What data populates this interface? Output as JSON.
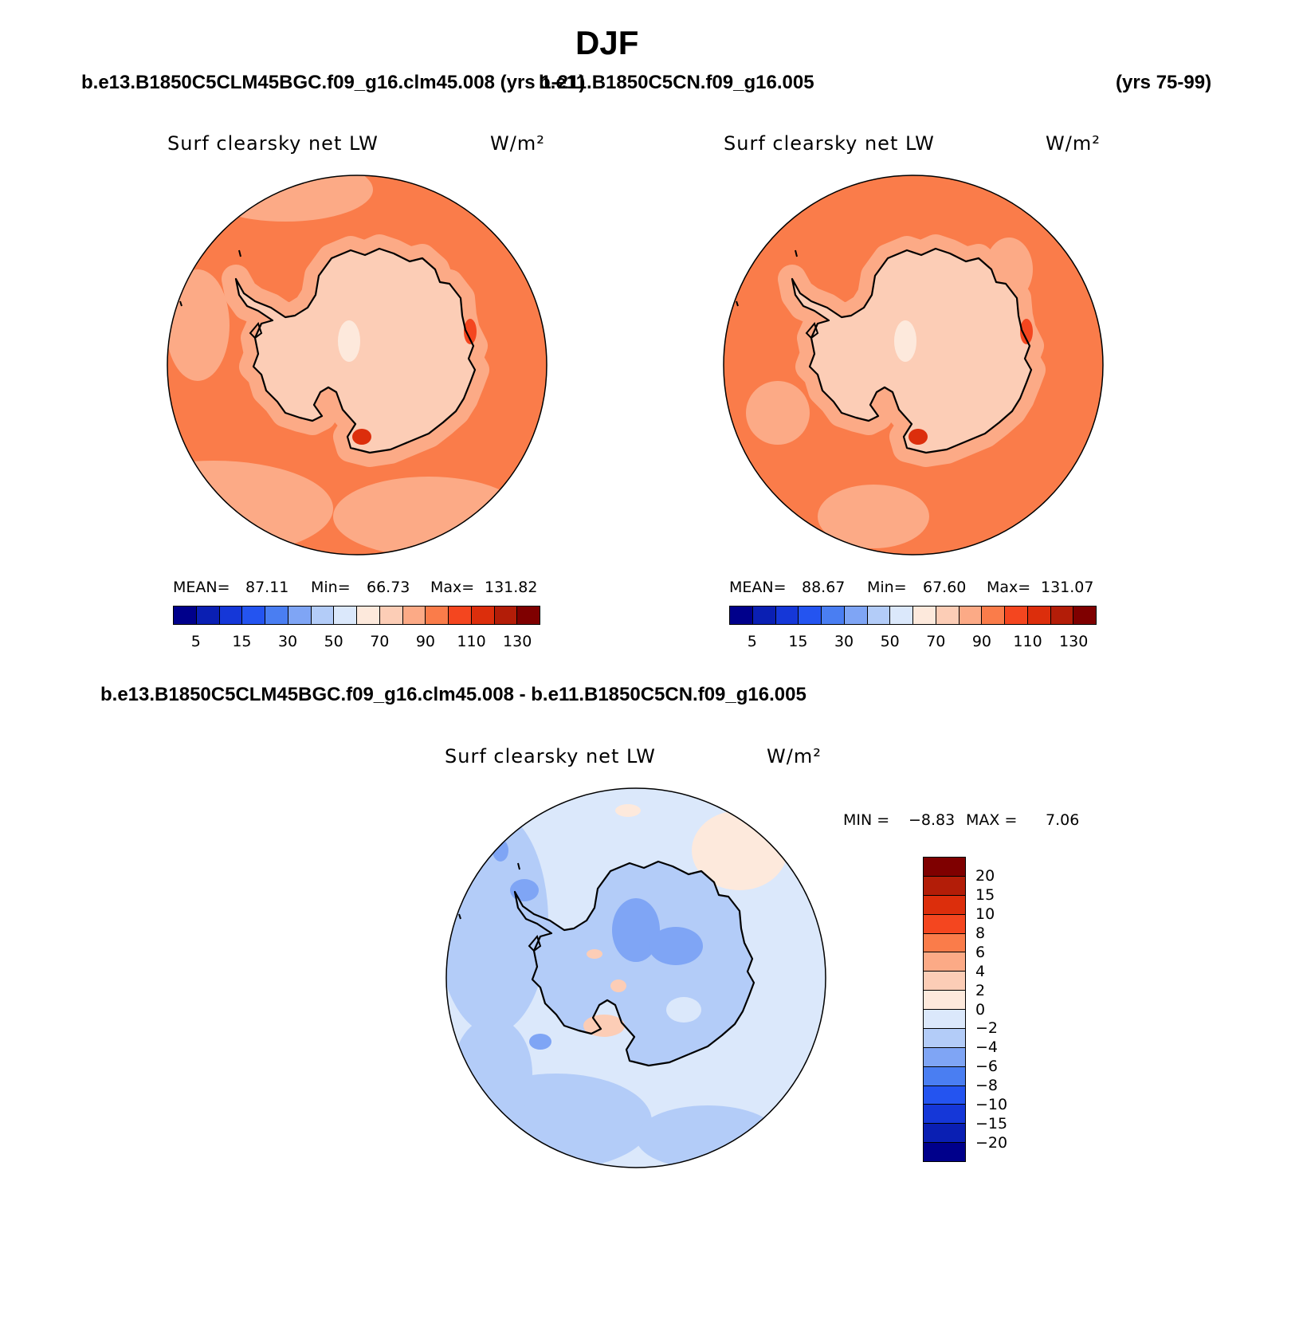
{
  "title": "DJF",
  "header": {
    "case1": "b.e13.B1850C5CLM45BGC.f09_g16.clm45.008 (yrs 1-21)",
    "case2": "b.e11.B1850C5CN.f09_g16.005",
    "case2_years": "(yrs 75-99)",
    "diff_title": "b.e13.B1850C5CLM45BGC.f09_g16.clm45.008 - b.e11.B1850C5CN.f09_g16.005"
  },
  "colors": {
    "main_scale": [
      "#00008b",
      "#0a1fb3",
      "#1537d8",
      "#2454f0",
      "#4a7ef2",
      "#7fa5f5",
      "#b3ccf8",
      "#dbe8fb",
      "#fde9dc",
      "#fccdb6",
      "#fcaa86",
      "#fa7c4a",
      "#f4461f",
      "#dc2e0c",
      "#b31d08",
      "#7f0000"
    ],
    "diff_scale": [
      "#7f0000",
      "#b31d08",
      "#dc2e0c",
      "#f4461f",
      "#fa7c4a",
      "#fcaa86",
      "#fccdb6",
      "#fde9dc",
      "#dbe8fb",
      "#b3ccf8",
      "#7fa5f5",
      "#4a7ef2",
      "#2454f0",
      "#1537d8",
      "#0a1fb3",
      "#00008b"
    ]
  },
  "chart_data": [
    {
      "type": "heatmap",
      "projection": "south-polar-stereographic",
      "title": "Surf clearsky net LW",
      "units": "W/m²",
      "mean_label": "MEAN=",
      "mean": "87.11",
      "min_label": "Min=",
      "min": "66.73",
      "max_label": "Max=",
      "max": "131.82",
      "colorbar_levels": [
        "5",
        "15",
        "30",
        "50",
        "70",
        "90",
        "110",
        "130"
      ],
      "pattern": "~70-80 over Antarctic interior, ~90-110 over ocean, local maxima near coasts"
    },
    {
      "type": "heatmap",
      "projection": "south-polar-stereographic",
      "title": "Surf clearsky net LW",
      "units": "W/m²",
      "mean_label": "MEAN=",
      "mean": "88.67",
      "min_label": "Min=",
      "min": "67.60",
      "max_label": "Max=",
      "max": "131.07",
      "colorbar_levels": [
        "5",
        "15",
        "30",
        "50",
        "70",
        "90",
        "110",
        "130"
      ],
      "pattern": "~70-80 over Antarctic interior, ~90-110 over ocean"
    },
    {
      "type": "heatmap",
      "projection": "south-polar-stereographic",
      "title": "Surf clearsky net LW",
      "units": "W/m²",
      "min_label": "MIN =",
      "min": "−8.83",
      "max_label": "MAX =",
      "max": "7.06",
      "colorbar_levels": [
        "20",
        "15",
        "10",
        "8",
        "6",
        "4",
        "2",
        "0",
        "−2",
        "−4",
        "−6",
        "−8",
        "−10",
        "−15",
        "−20"
      ],
      "pattern": "mostly 0 to -4 over ocean, mixed -6 to +4 over continent"
    }
  ]
}
